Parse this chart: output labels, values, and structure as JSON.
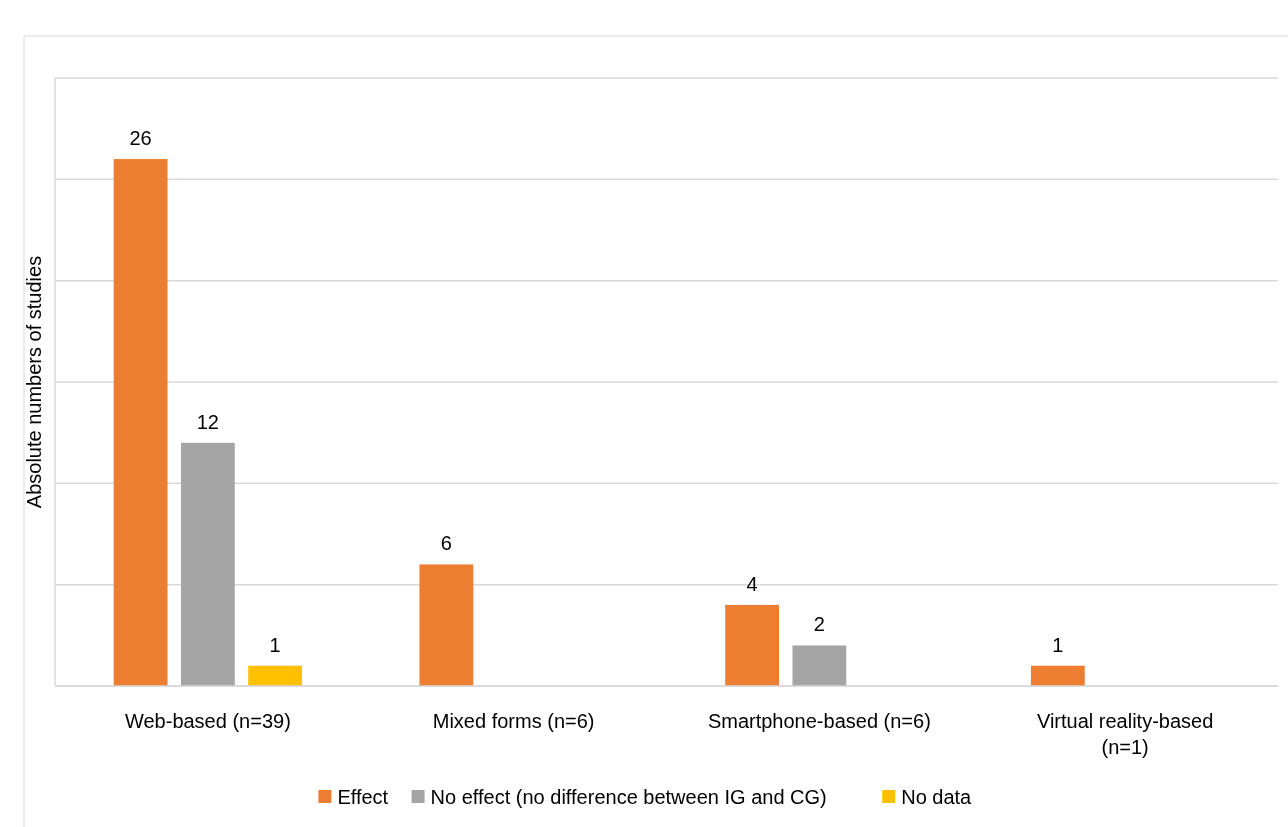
{
  "chart_data": {
    "type": "bar",
    "ylabel": "Absolute numbers of studies",
    "categories": [
      "Web-based (n=39)",
      "Mixed forms (n=6)",
      "Smartphone-based (n=6)",
      "Virtual reality-based (n=1)"
    ],
    "series": [
      {
        "name": "Effect",
        "color": "#ed7d31",
        "values": [
          26,
          6,
          4,
          1
        ]
      },
      {
        "name": "No effect (no difference between IG and CG)",
        "color": "#a5a5a5",
        "values": [
          12,
          null,
          2,
          null
        ]
      },
      {
        "name": "No data",
        "color": "#ffc000",
        "values": [
          1,
          null,
          null,
          null
        ]
      }
    ],
    "ylim": [
      0,
      30
    ],
    "yticks": [
      {
        "value": 0,
        "label": null
      },
      {
        "value": 5,
        "label": null
      },
      {
        "value": 10,
        "label": null
      },
      {
        "value": 15,
        "label": null
      },
      {
        "value": 20,
        "label": null
      },
      {
        "value": 25,
        "label": null
      },
      {
        "value": 30,
        "label": null
      }
    ],
    "grid": "y",
    "legend": "bottom",
    "data_labels": true,
    "tick_labels": "x"
  }
}
